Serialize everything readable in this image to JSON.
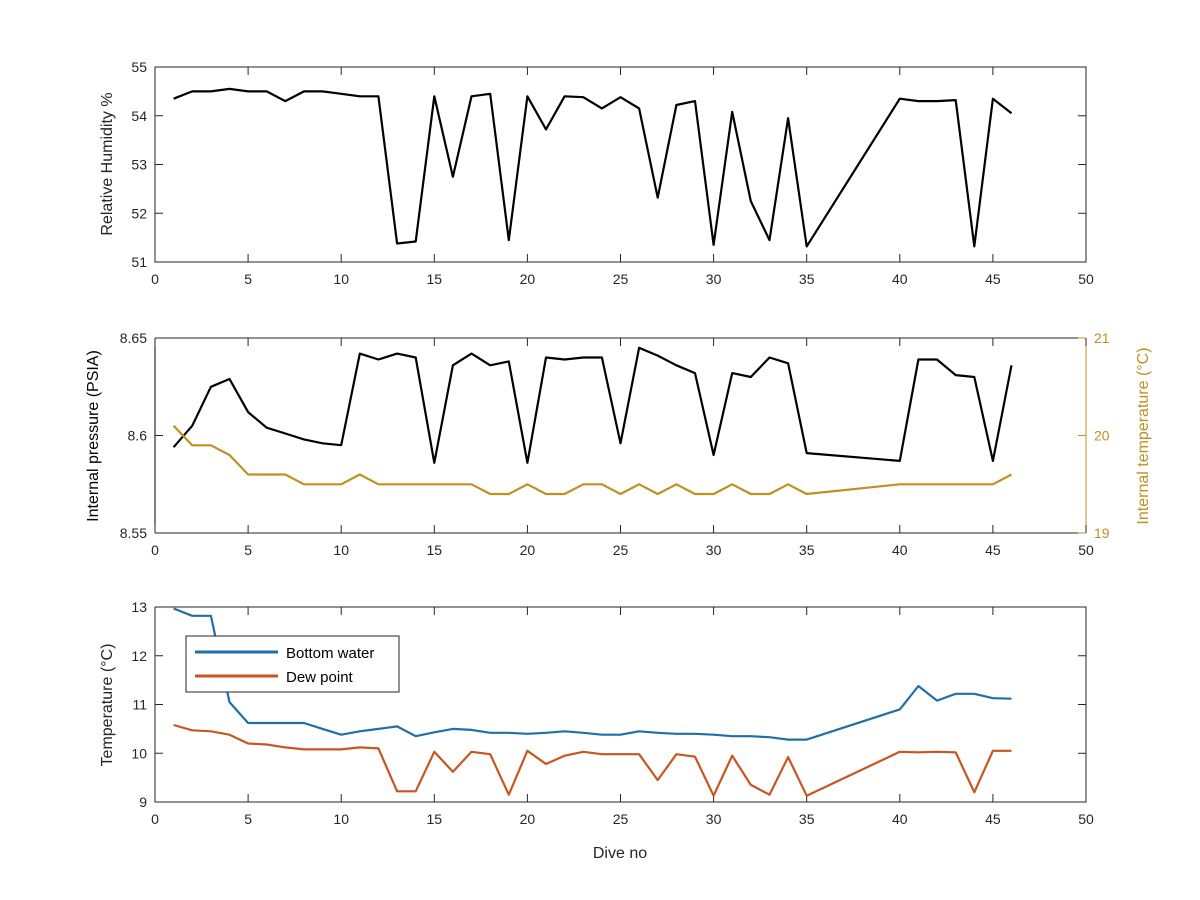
{
  "colors": {
    "black": "#000000",
    "axis": "#262626",
    "tick_text": "#262626",
    "right_axis": "#C09020",
    "bottom_water": "#1F6FA8",
    "dew_point": "#C8561E",
    "background": "#ffffff"
  },
  "chart_data": [
    {
      "type": "line",
      "title": "",
      "xlabel": "",
      "ylabel": "Relative Humidity %",
      "xlim": [
        0,
        50
      ],
      "ylim": [
        51,
        55
      ],
      "xticks": [
        "0",
        "5",
        "10",
        "15",
        "20",
        "25",
        "30",
        "35",
        "40",
        "45",
        "50"
      ],
      "yticks": [
        "51",
        "52",
        "53",
        "54",
        "55"
      ],
      "grid": false,
      "series": [
        {
          "color_key": "black",
          "x": [
            1,
            2,
            3,
            4,
            5,
            6,
            7,
            8,
            9,
            10,
            11,
            12,
            13,
            14,
            15,
            16,
            17,
            18,
            19,
            20,
            21,
            22,
            23,
            24,
            25,
            26,
            27,
            28,
            29,
            30,
            31,
            32,
            33,
            34,
            35,
            40,
            41,
            42,
            43,
            44,
            45,
            46
          ],
          "values": [
            54.35,
            54.5,
            54.5,
            54.55,
            54.5,
            54.5,
            54.3,
            54.5,
            54.5,
            54.45,
            54.4,
            54.4,
            51.38,
            51.42,
            54.4,
            52.75,
            54.4,
            54.45,
            51.45,
            54.4,
            53.72,
            54.4,
            54.38,
            54.15,
            54.38,
            54.15,
            52.32,
            54.22,
            54.3,
            51.35,
            54.08,
            52.25,
            51.45,
            53.95,
            51.32,
            54.35,
            54.3,
            54.3,
            54.32,
            51.32,
            54.35,
            54.05
          ]
        }
      ]
    },
    {
      "type": "line",
      "title": "",
      "xlabel": "",
      "ylabel": "Internal pressure (PSIA)",
      "y2label": "Internal temperature (°C)",
      "xlim": [
        0,
        50
      ],
      "ylim": [
        8.55,
        8.65
      ],
      "y2lim": [
        19,
        21
      ],
      "xticks": [
        "0",
        "5",
        "10",
        "15",
        "20",
        "25",
        "30",
        "35",
        "40",
        "45",
        "50"
      ],
      "yticks": [
        "8.55",
        "8.6",
        "8.65"
      ],
      "y2ticks": [
        "19",
        "20",
        "21"
      ],
      "grid": false,
      "series": [
        {
          "axis": "left",
          "color_key": "black",
          "x": [
            1,
            2,
            3,
            4,
            5,
            6,
            7,
            8,
            9,
            10,
            11,
            12,
            13,
            14,
            15,
            16,
            17,
            18,
            19,
            20,
            21,
            22,
            23,
            24,
            25,
            26,
            27,
            28,
            29,
            30,
            31,
            32,
            33,
            34,
            35,
            40,
            41,
            42,
            43,
            44,
            45,
            46
          ],
          "values": [
            8.594,
            8.605,
            8.625,
            8.629,
            8.612,
            8.604,
            8.601,
            8.598,
            8.596,
            8.595,
            8.642,
            8.639,
            8.642,
            8.64,
            8.586,
            8.636,
            8.642,
            8.636,
            8.638,
            8.586,
            8.64,
            8.639,
            8.64,
            8.64,
            8.596,
            8.645,
            8.641,
            8.636,
            8.632,
            8.59,
            8.632,
            8.63,
            8.64,
            8.637,
            8.591,
            8.587,
            8.639,
            8.639,
            8.631,
            8.63,
            8.587,
            8.636
          ]
        },
        {
          "axis": "right",
          "color_key": "right_axis",
          "x": [
            1,
            2,
            3,
            4,
            5,
            6,
            7,
            8,
            9,
            10,
            11,
            12,
            13,
            14,
            15,
            16,
            17,
            18,
            19,
            20,
            21,
            22,
            23,
            24,
            25,
            26,
            27,
            28,
            29,
            30,
            31,
            32,
            33,
            34,
            35,
            40,
            41,
            42,
            43,
            44,
            45,
            46
          ],
          "values": [
            20.1,
            19.9,
            19.9,
            19.8,
            19.6,
            19.6,
            19.6,
            19.5,
            19.5,
            19.5,
            19.6,
            19.5,
            19.5,
            19.5,
            19.5,
            19.5,
            19.5,
            19.4,
            19.4,
            19.5,
            19.4,
            19.4,
            19.5,
            19.5,
            19.4,
            19.5,
            19.4,
            19.5,
            19.4,
            19.4,
            19.5,
            19.4,
            19.4,
            19.5,
            19.4,
            19.5,
            19.5,
            19.5,
            19.5,
            19.5,
            19.5,
            19.6
          ]
        }
      ]
    },
    {
      "type": "line",
      "title": "",
      "xlabel": "Dive no",
      "ylabel": "Temperature (°C)",
      "xlim": [
        0,
        50
      ],
      "ylim": [
        9,
        13
      ],
      "xticks": [
        "0",
        "5",
        "10",
        "15",
        "20",
        "25",
        "30",
        "35",
        "40",
        "45",
        "50"
      ],
      "yticks": [
        "9",
        "10",
        "11",
        "12",
        "13"
      ],
      "grid": false,
      "legend": {
        "position": "top-left",
        "entries": [
          "Bottom water",
          "Dew point"
        ]
      },
      "series": [
        {
          "name": "Bottom water",
          "color_key": "bottom_water",
          "x": [
            1,
            2,
            3,
            4,
            5,
            6,
            7,
            8,
            9,
            10,
            11,
            12,
            13,
            14,
            15,
            16,
            17,
            18,
            19,
            20,
            21,
            22,
            23,
            24,
            25,
            26,
            27,
            28,
            29,
            30,
            31,
            32,
            33,
            34,
            35,
            40,
            41,
            42,
            43,
            44,
            45,
            46
          ],
          "values": [
            12.97,
            12.82,
            12.82,
            11.05,
            10.62,
            10.62,
            10.62,
            10.62,
            10.5,
            10.38,
            10.45,
            10.5,
            10.55,
            10.35,
            10.43,
            10.5,
            10.48,
            10.42,
            10.42,
            10.4,
            10.42,
            10.45,
            10.42,
            10.38,
            10.38,
            10.45,
            10.42,
            10.4,
            10.4,
            10.38,
            10.35,
            10.35,
            10.33,
            10.28,
            10.28,
            10.9,
            11.38,
            11.08,
            11.22,
            11.22,
            11.13,
            11.12
          ]
        },
        {
          "name": "Dew point",
          "color_key": "dew_point",
          "x": [
            1,
            2,
            3,
            4,
            5,
            6,
            7,
            8,
            9,
            10,
            11,
            12,
            13,
            14,
            15,
            16,
            17,
            18,
            19,
            20,
            21,
            22,
            23,
            24,
            25,
            26,
            27,
            28,
            29,
            30,
            31,
            32,
            33,
            34,
            35,
            40,
            41,
            42,
            43,
            44,
            45,
            46
          ],
          "values": [
            10.58,
            10.47,
            10.45,
            10.38,
            10.2,
            10.18,
            10.12,
            10.08,
            10.08,
            10.08,
            10.12,
            10.1,
            9.22,
            9.22,
            10.03,
            9.62,
            10.03,
            9.98,
            9.15,
            10.05,
            9.78,
            9.95,
            10.03,
            9.98,
            9.98,
            9.98,
            9.45,
            9.98,
            9.93,
            9.13,
            9.95,
            9.35,
            9.15,
            9.92,
            9.13,
            10.03,
            10.02,
            10.03,
            10.02,
            9.2,
            10.05,
            10.05
          ]
        }
      ]
    }
  ]
}
